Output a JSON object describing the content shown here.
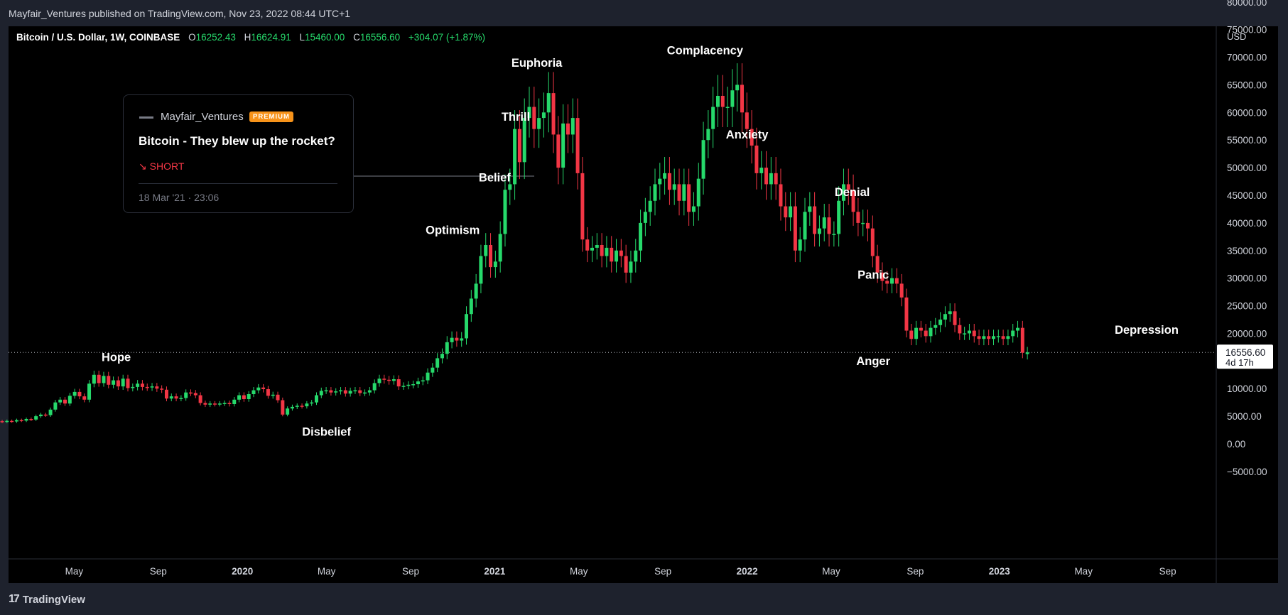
{
  "header": {
    "published_line": "Mayfair_Ventures published on TradingView.com, Nov 23, 2022 08:44 UTC+1"
  },
  "legend": {
    "symbol": "Bitcoin / U.S. Dollar, 1W, COINBASE",
    "o_label": "O",
    "o_value": "16252.43",
    "h_label": "H",
    "h_value": "16624.91",
    "l_label": "L",
    "l_value": "15460.00",
    "c_label": "C",
    "c_value": "16556.60",
    "change": "+304.07 (+1.87%)"
  },
  "idea_card": {
    "author": "Mayfair_Ventures",
    "badge": "PREMIUM",
    "title": "Bitcoin - They blew up the rocket?",
    "direction": "↘ SHORT",
    "date": "18 Mar '21 · 23:06"
  },
  "footer": {
    "brand": "TradingView"
  },
  "colors": {
    "up": "#26d96b",
    "down": "#f23645",
    "background": "#000000",
    "panel": "#1e222d",
    "badge": "#f7931a"
  },
  "chart_data": {
    "type": "candlestick",
    "currency_label": "USD",
    "ylim": [
      -8000,
      86000
    ],
    "y_ticks": [
      "80000.00",
      "75000.00",
      "70000.00",
      "65000.00",
      "60000.00",
      "55000.00",
      "50000.00",
      "45000.00",
      "40000.00",
      "35000.00",
      "30000.00",
      "25000.00",
      "20000.00",
      "15000.00",
      "10000.00",
      "5000.00",
      "0.00",
      "−5000.00"
    ],
    "x_ticks": [
      {
        "label": "May",
        "t": "2019-05",
        "bold": false
      },
      {
        "label": "Sep",
        "t": "2019-09",
        "bold": false
      },
      {
        "label": "2020",
        "t": "2020-01",
        "bold": true
      },
      {
        "label": "May",
        "t": "2020-05",
        "bold": false
      },
      {
        "label": "Sep",
        "t": "2020-09",
        "bold": false
      },
      {
        "label": "2021",
        "t": "2021-01",
        "bold": true
      },
      {
        "label": "May",
        "t": "2021-05",
        "bold": false
      },
      {
        "label": "Sep",
        "t": "2021-09",
        "bold": false
      },
      {
        "label": "2022",
        "t": "2022-01",
        "bold": true
      },
      {
        "label": "May",
        "t": "2022-05",
        "bold": false
      },
      {
        "label": "Sep",
        "t": "2022-09",
        "bold": false
      },
      {
        "label": "2023",
        "t": "2023-01",
        "bold": true
      },
      {
        "label": "May",
        "t": "2023-05",
        "bold": false
      },
      {
        "label": "Sep",
        "t": "2023-09",
        "bold": false
      }
    ],
    "last_price": "16556.60",
    "last_price_value": 16556.6,
    "countdown": "4d 17h",
    "annotations": [
      {
        "text": "Hope",
        "t": "2019-07",
        "y": 15000
      },
      {
        "text": "Disbelief",
        "t": "2020-05",
        "y": 1500
      },
      {
        "text": "Optimism",
        "t": "2020-11",
        "y": 38000
      },
      {
        "text": "Belief",
        "t": "2021-01",
        "y": 47500
      },
      {
        "text": "Thrill",
        "t": "2021-02",
        "y": 58500
      },
      {
        "text": "Euphoria",
        "t": "2021-03",
        "y": 68300
      },
      {
        "text": "Complacency",
        "t": "2021-11",
        "y": 70500
      },
      {
        "text": "Anxiety",
        "t": "2022-01",
        "y": 55300
      },
      {
        "text": "Denial",
        "t": "2022-06",
        "y": 44900
      },
      {
        "text": "Panic",
        "t": "2022-07",
        "y": 29900
      },
      {
        "text": "Anger",
        "t": "2022-07",
        "y": 14300
      },
      {
        "text": "Depression",
        "t": "2023-08",
        "y": 19900
      }
    ],
    "candles": [
      [
        3700,
        3950
      ],
      [
        3950,
        4100
      ],
      [
        4100,
        4000
      ],
      [
        4000,
        4150
      ],
      [
        4150,
        4050
      ],
      [
        4050,
        4300
      ],
      [
        4300,
        4200
      ],
      [
        4200,
        4500
      ],
      [
        4500,
        4400
      ],
      [
        4400,
        5000
      ],
      [
        5000,
        5300
      ],
      [
        5300,
        5200
      ],
      [
        5200,
        6200
      ],
      [
        6200,
        7500
      ],
      [
        7500,
        8000
      ],
      [
        8000,
        7300
      ],
      [
        7300,
        8700
      ],
      [
        8700,
        9400
      ],
      [
        9400,
        8600
      ],
      [
        8600,
        8000
      ],
      [
        8000,
        10900
      ],
      [
        10900,
        12500
      ],
      [
        12500,
        11000
      ],
      [
        11000,
        12300
      ],
      [
        12300,
        10700
      ],
      [
        10700,
        11500
      ],
      [
        11500,
        10400
      ],
      [
        10400,
        11800
      ],
      [
        11800,
        10100
      ],
      [
        10100,
        10300
      ],
      [
        10300,
        10900
      ],
      [
        10900,
        10300
      ],
      [
        10300,
        10200
      ],
      [
        10200,
        10400
      ],
      [
        10400,
        10000
      ],
      [
        10000,
        9800
      ],
      [
        9800,
        8200
      ],
      [
        8200,
        8600
      ],
      [
        8600,
        8200
      ],
      [
        8200,
        8300
      ],
      [
        8300,
        9300
      ],
      [
        9300,
        9200
      ],
      [
        9200,
        8800
      ],
      [
        8800,
        7400
      ],
      [
        7400,
        7100
      ],
      [
        7100,
        7300
      ],
      [
        7300,
        7200
      ],
      [
        7200,
        7300
      ],
      [
        7300,
        7400
      ],
      [
        7400,
        7200
      ],
      [
        7200,
        8000
      ],
      [
        8000,
        8800
      ],
      [
        8800,
        8100
      ],
      [
        8100,
        9000
      ],
      [
        9000,
        9700
      ],
      [
        9700,
        10200
      ],
      [
        10200,
        9900
      ],
      [
        9900,
        8700
      ],
      [
        8700,
        8900
      ],
      [
        8900,
        7900
      ],
      [
        7900,
        5300
      ],
      [
        5300,
        6400
      ],
      [
        6400,
        6700
      ],
      [
        6700,
        6900
      ],
      [
        6900,
        6800
      ],
      [
        6800,
        7300
      ],
      [
        7300,
        7500
      ],
      [
        7500,
        8800
      ],
      [
        8800,
        9600
      ],
      [
        9600,
        9700
      ],
      [
        9700,
        9300
      ],
      [
        9300,
        9500
      ],
      [
        9500,
        9700
      ],
      [
        9700,
        9100
      ],
      [
        9100,
        9600
      ],
      [
        9600,
        9700
      ],
      [
        9700,
        9200
      ],
      [
        9200,
        9300
      ],
      [
        9300,
        9700
      ],
      [
        9700,
        11000
      ],
      [
        11000,
        11800
      ],
      [
        11800,
        11600
      ],
      [
        11600,
        11400
      ],
      [
        11400,
        11700
      ],
      [
        11700,
        10400
      ],
      [
        10400,
        10500
      ],
      [
        10500,
        10700
      ],
      [
        10700,
        10800
      ],
      [
        10800,
        11300
      ],
      [
        11300,
        11500
      ],
      [
        11500,
        12900
      ],
      [
        12900,
        13800
      ],
      [
        13800,
        15500
      ],
      [
        15500,
        16300
      ],
      [
        16300,
        18400
      ],
      [
        18400,
        19200
      ],
      [
        19200,
        18700
      ],
      [
        18700,
        19100
      ],
      [
        19100,
        23500
      ],
      [
        23500,
        26300
      ],
      [
        26300,
        29000
      ],
      [
        29000,
        34000
      ],
      [
        34000,
        36000
      ],
      [
        36000,
        32000
      ],
      [
        32000,
        33000
      ],
      [
        33000,
        38000
      ],
      [
        38000,
        46000
      ],
      [
        46000,
        47000
      ],
      [
        47000,
        57000
      ],
      [
        57000,
        51000
      ],
      [
        51000,
        59000
      ],
      [
        59000,
        61000
      ],
      [
        61000,
        57000
      ],
      [
        57000,
        59000
      ],
      [
        59000,
        60000
      ],
      [
        60000,
        63500
      ],
      [
        63500,
        56000
      ],
      [
        56000,
        50000
      ],
      [
        50000,
        58000
      ],
      [
        58000,
        56000
      ],
      [
        56000,
        59000
      ],
      [
        59000,
        49000
      ],
      [
        49000,
        37000
      ],
      [
        37000,
        35000
      ],
      [
        35000,
        35500
      ],
      [
        35500,
        36000
      ],
      [
        36000,
        34000
      ],
      [
        34000,
        35500
      ],
      [
        35500,
        33000
      ],
      [
        33000,
        35000
      ],
      [
        35000,
        34000
      ],
      [
        34000,
        31000
      ],
      [
        31000,
        33000
      ],
      [
        33000,
        35000
      ],
      [
        35000,
        40000
      ],
      [
        40000,
        42000
      ],
      [
        42000,
        44000
      ],
      [
        44000,
        47000
      ],
      [
        47000,
        48000
      ],
      [
        48000,
        49000
      ],
      [
        49000,
        46000
      ],
      [
        46000,
        47000
      ],
      [
        47000,
        44000
      ],
      [
        44000,
        47000
      ],
      [
        47000,
        42000
      ],
      [
        42000,
        43000
      ],
      [
        43000,
        48000
      ],
      [
        48000,
        55000
      ],
      [
        55000,
        57000
      ],
      [
        57000,
        61000
      ],
      [
        61000,
        63000
      ],
      [
        63000,
        61000
      ],
      [
        61000,
        61000
      ],
      [
        61000,
        64000
      ],
      [
        64000,
        65000
      ],
      [
        65000,
        60000
      ],
      [
        60000,
        57000
      ],
      [
        57000,
        54000
      ],
      [
        54000,
        49000
      ],
      [
        49000,
        50000
      ],
      [
        50000,
        47000
      ],
      [
        47000,
        49000
      ],
      [
        49000,
        47000
      ],
      [
        47000,
        43000
      ],
      [
        43000,
        41000
      ],
      [
        41000,
        43000
      ],
      [
        43000,
        35000
      ],
      [
        35000,
        37000
      ],
      [
        37000,
        42000
      ],
      [
        42000,
        43000
      ],
      [
        43000,
        38000
      ],
      [
        38000,
        39000
      ],
      [
        39000,
        41000
      ],
      [
        41000,
        38000
      ],
      [
        38000,
        38000
      ],
      [
        38000,
        44000
      ],
      [
        44000,
        47000
      ],
      [
        47000,
        46000
      ],
      [
        46000,
        42000
      ],
      [
        42000,
        40000
      ],
      [
        40000,
        40000
      ],
      [
        40000,
        39000
      ],
      [
        39000,
        34000
      ],
      [
        34000,
        31000
      ],
      [
        31000,
        29500
      ],
      [
        29500,
        29000
      ],
      [
        29000,
        30000
      ],
      [
        30000,
        29000
      ],
      [
        29000,
        26500
      ],
      [
        26500,
        20500
      ],
      [
        20500,
        19000
      ],
      [
        19000,
        21000
      ],
      [
        21000,
        20500
      ],
      [
        20500,
        19500
      ],
      [
        19500,
        21000
      ],
      [
        21000,
        21500
      ],
      [
        21500,
        22500
      ],
      [
        22500,
        23500
      ],
      [
        23500,
        24000
      ],
      [
        24000,
        21500
      ],
      [
        21500,
        20000
      ],
      [
        20000,
        20000
      ],
      [
        20000,
        20500
      ],
      [
        20500,
        19500
      ],
      [
        19500,
        19000
      ],
      [
        19000,
        19500
      ],
      [
        19500,
        19000
      ],
      [
        19000,
        19500
      ],
      [
        19500,
        19500
      ],
      [
        19500,
        19000
      ],
      [
        19000,
        19500
      ],
      [
        19500,
        20500
      ],
      [
        20500,
        21000
      ],
      [
        21000,
        16500
      ],
      [
        16252,
        16556
      ]
    ]
  }
}
